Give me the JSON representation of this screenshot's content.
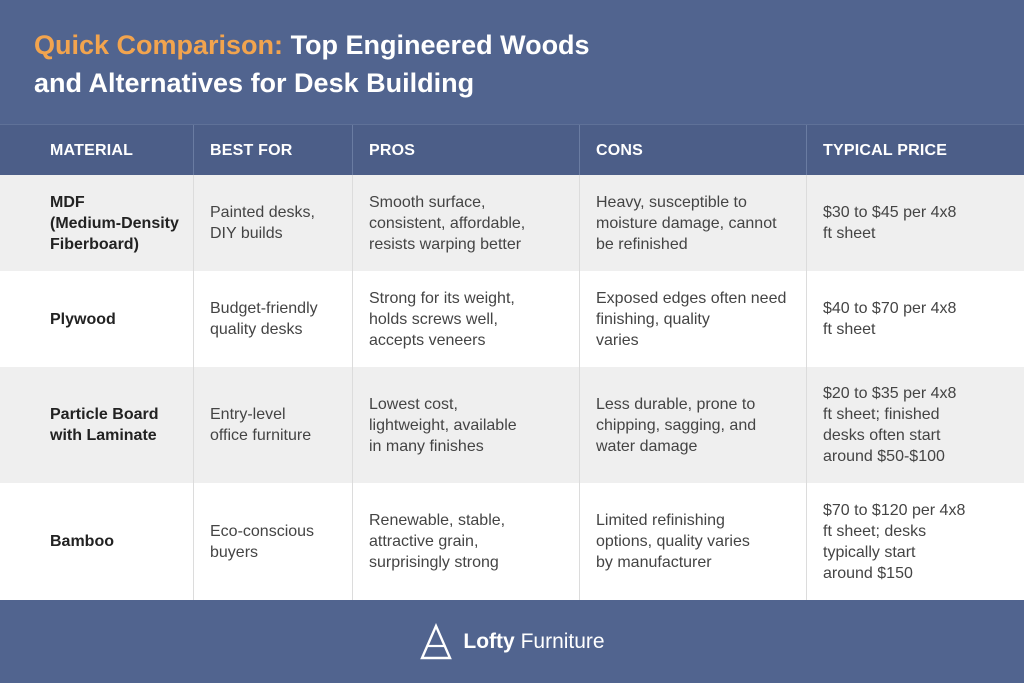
{
  "title": {
    "accent": "Quick Comparison:",
    "main_line1": "Top Engineered Woods",
    "main_line2": "and Alternatives for Desk Building"
  },
  "columns": [
    "MATERIAL",
    "BEST FOR",
    "PROS",
    "CONS",
    "TYPICAL PRICE"
  ],
  "rows": [
    {
      "material": "MDF\n(Medium-Density\nFiberboard)",
      "best_for": "Painted desks,\nDIY builds",
      "pros": "Smooth surface,\nconsistent, affordable,\nresists warping better",
      "cons": "Heavy, susceptible to\nmoisture damage, cannot\nbe refinished",
      "price": "$30 to $45 per 4x8\nft sheet"
    },
    {
      "material": "Plywood",
      "best_for": "Budget-friendly\nquality desks",
      "pros": "Strong for its weight,\nholds screws well,\naccepts veneers",
      "cons": "Exposed edges often need\nfinishing, quality\nvaries",
      "price": "$40 to $70 per 4x8\nft sheet"
    },
    {
      "material": "Particle Board\nwith Laminate",
      "best_for": "Entry-level\noffice furniture",
      "pros": "Lowest cost,\nlightweight, available\nin many finishes",
      "cons": "Less durable, prone to\nchipping, sagging, and\nwater damage",
      "price": "$20 to $35 per 4x8\nft sheet; finished\ndesks often start\naround $50-$100"
    },
    {
      "material": "Bamboo",
      "best_for": "Eco-conscious\nbuyers",
      "pros": "Renewable, stable,\nattractive grain,\nsurprisingly strong",
      "cons": "Limited refinishing\noptions, quality varies\nby manufacturer",
      "price": "$70 to $120 per 4x8\nft sheet; desks\ntypically start\naround $150"
    }
  ],
  "footer": {
    "brand_bold": "Lofty",
    "brand_regular": "Furniture",
    "logo_icon": "a-frame-logo-icon"
  },
  "colors": {
    "header_bg": "#51648f",
    "accent": "#f2a44e",
    "row_gray": "#efefef",
    "row_white": "#ffffff"
  }
}
